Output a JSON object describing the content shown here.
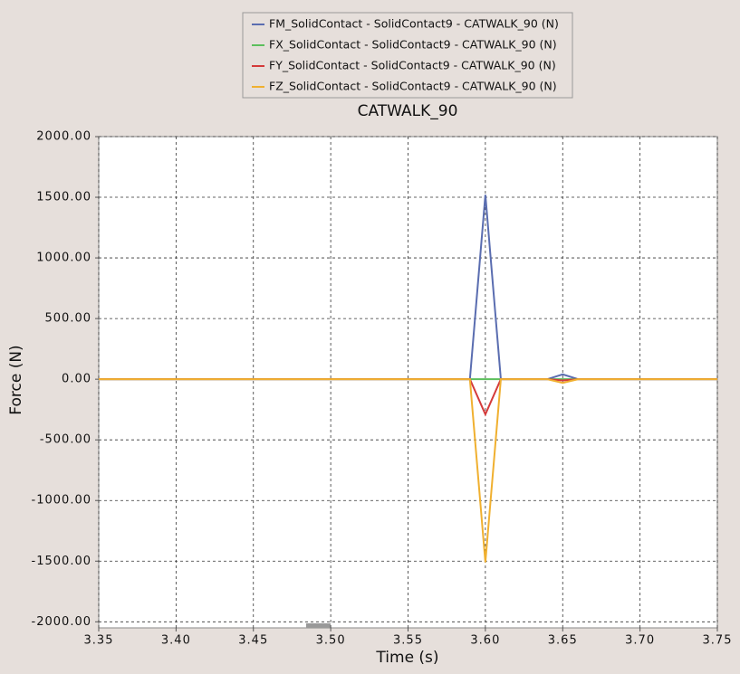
{
  "chart_data": {
    "type": "line",
    "title": "CATWALK_90",
    "x_label": "Time (s)",
    "y_label": "Force (N)",
    "x": [
      3.35,
      3.59,
      3.6,
      3.61,
      3.64,
      3.65,
      3.66,
      3.75
    ],
    "series": [
      {
        "name": "FM_SolidContact - SolidContact9 - CATWALK_90 (N)",
        "color": "#5a6db0",
        "values": [
          0,
          0,
          1520,
          0,
          0,
          40,
          0,
          0
        ]
      },
      {
        "name": "FX_SolidContact - SolidContact9 - CATWALK_90 (N)",
        "color": "#5cbf5c",
        "values": [
          0,
          0,
          0,
          0,
          0,
          0,
          0,
          0
        ]
      },
      {
        "name": "FY_SolidContact - SolidContact9 - CATWALK_90 (N)",
        "color": "#d43a3a",
        "values": [
          0,
          0,
          -290,
          0,
          0,
          -10,
          0,
          0
        ]
      },
      {
        "name": "FZ_SolidContact - SolidContact9 - CATWALK_90 (N)",
        "color": "#f0b030",
        "values": [
          0,
          0,
          -1510,
          0,
          0,
          -30,
          0,
          0
        ]
      }
    ],
    "xlim": [
      3.35,
      3.75
    ],
    "xticks": [
      3.35,
      {
        "value": 3.4,
        "label": "3.40"
      },
      3.45,
      {
        "value": 3.5,
        "label": "3.50"
      },
      3.55,
      {
        "value": 3.6,
        "label": "3.60"
      },
      3.65,
      {
        "value": 3.7,
        "label": "3.70"
      },
      3.75
    ],
    "ylim": [
      -2050,
      2000
    ],
    "yticks": [
      {
        "value": 2000,
        "label": "2000.00"
      },
      {
        "value": 1500,
        "label": "1500.00"
      },
      {
        "value": 1000,
        "label": "1000.00"
      },
      {
        "value": 500,
        "label": "500.00"
      },
      {
        "value": 0,
        "label": "0.00"
      },
      {
        "value": -500,
        "label": "-500.00"
      },
      {
        "value": -1000,
        "label": "-1000.00"
      },
      {
        "value": -1500,
        "label": "-1500.00"
      },
      {
        "value": -2000,
        "label": "-2000.00"
      }
    ],
    "grid": true,
    "legend": "top"
  }
}
